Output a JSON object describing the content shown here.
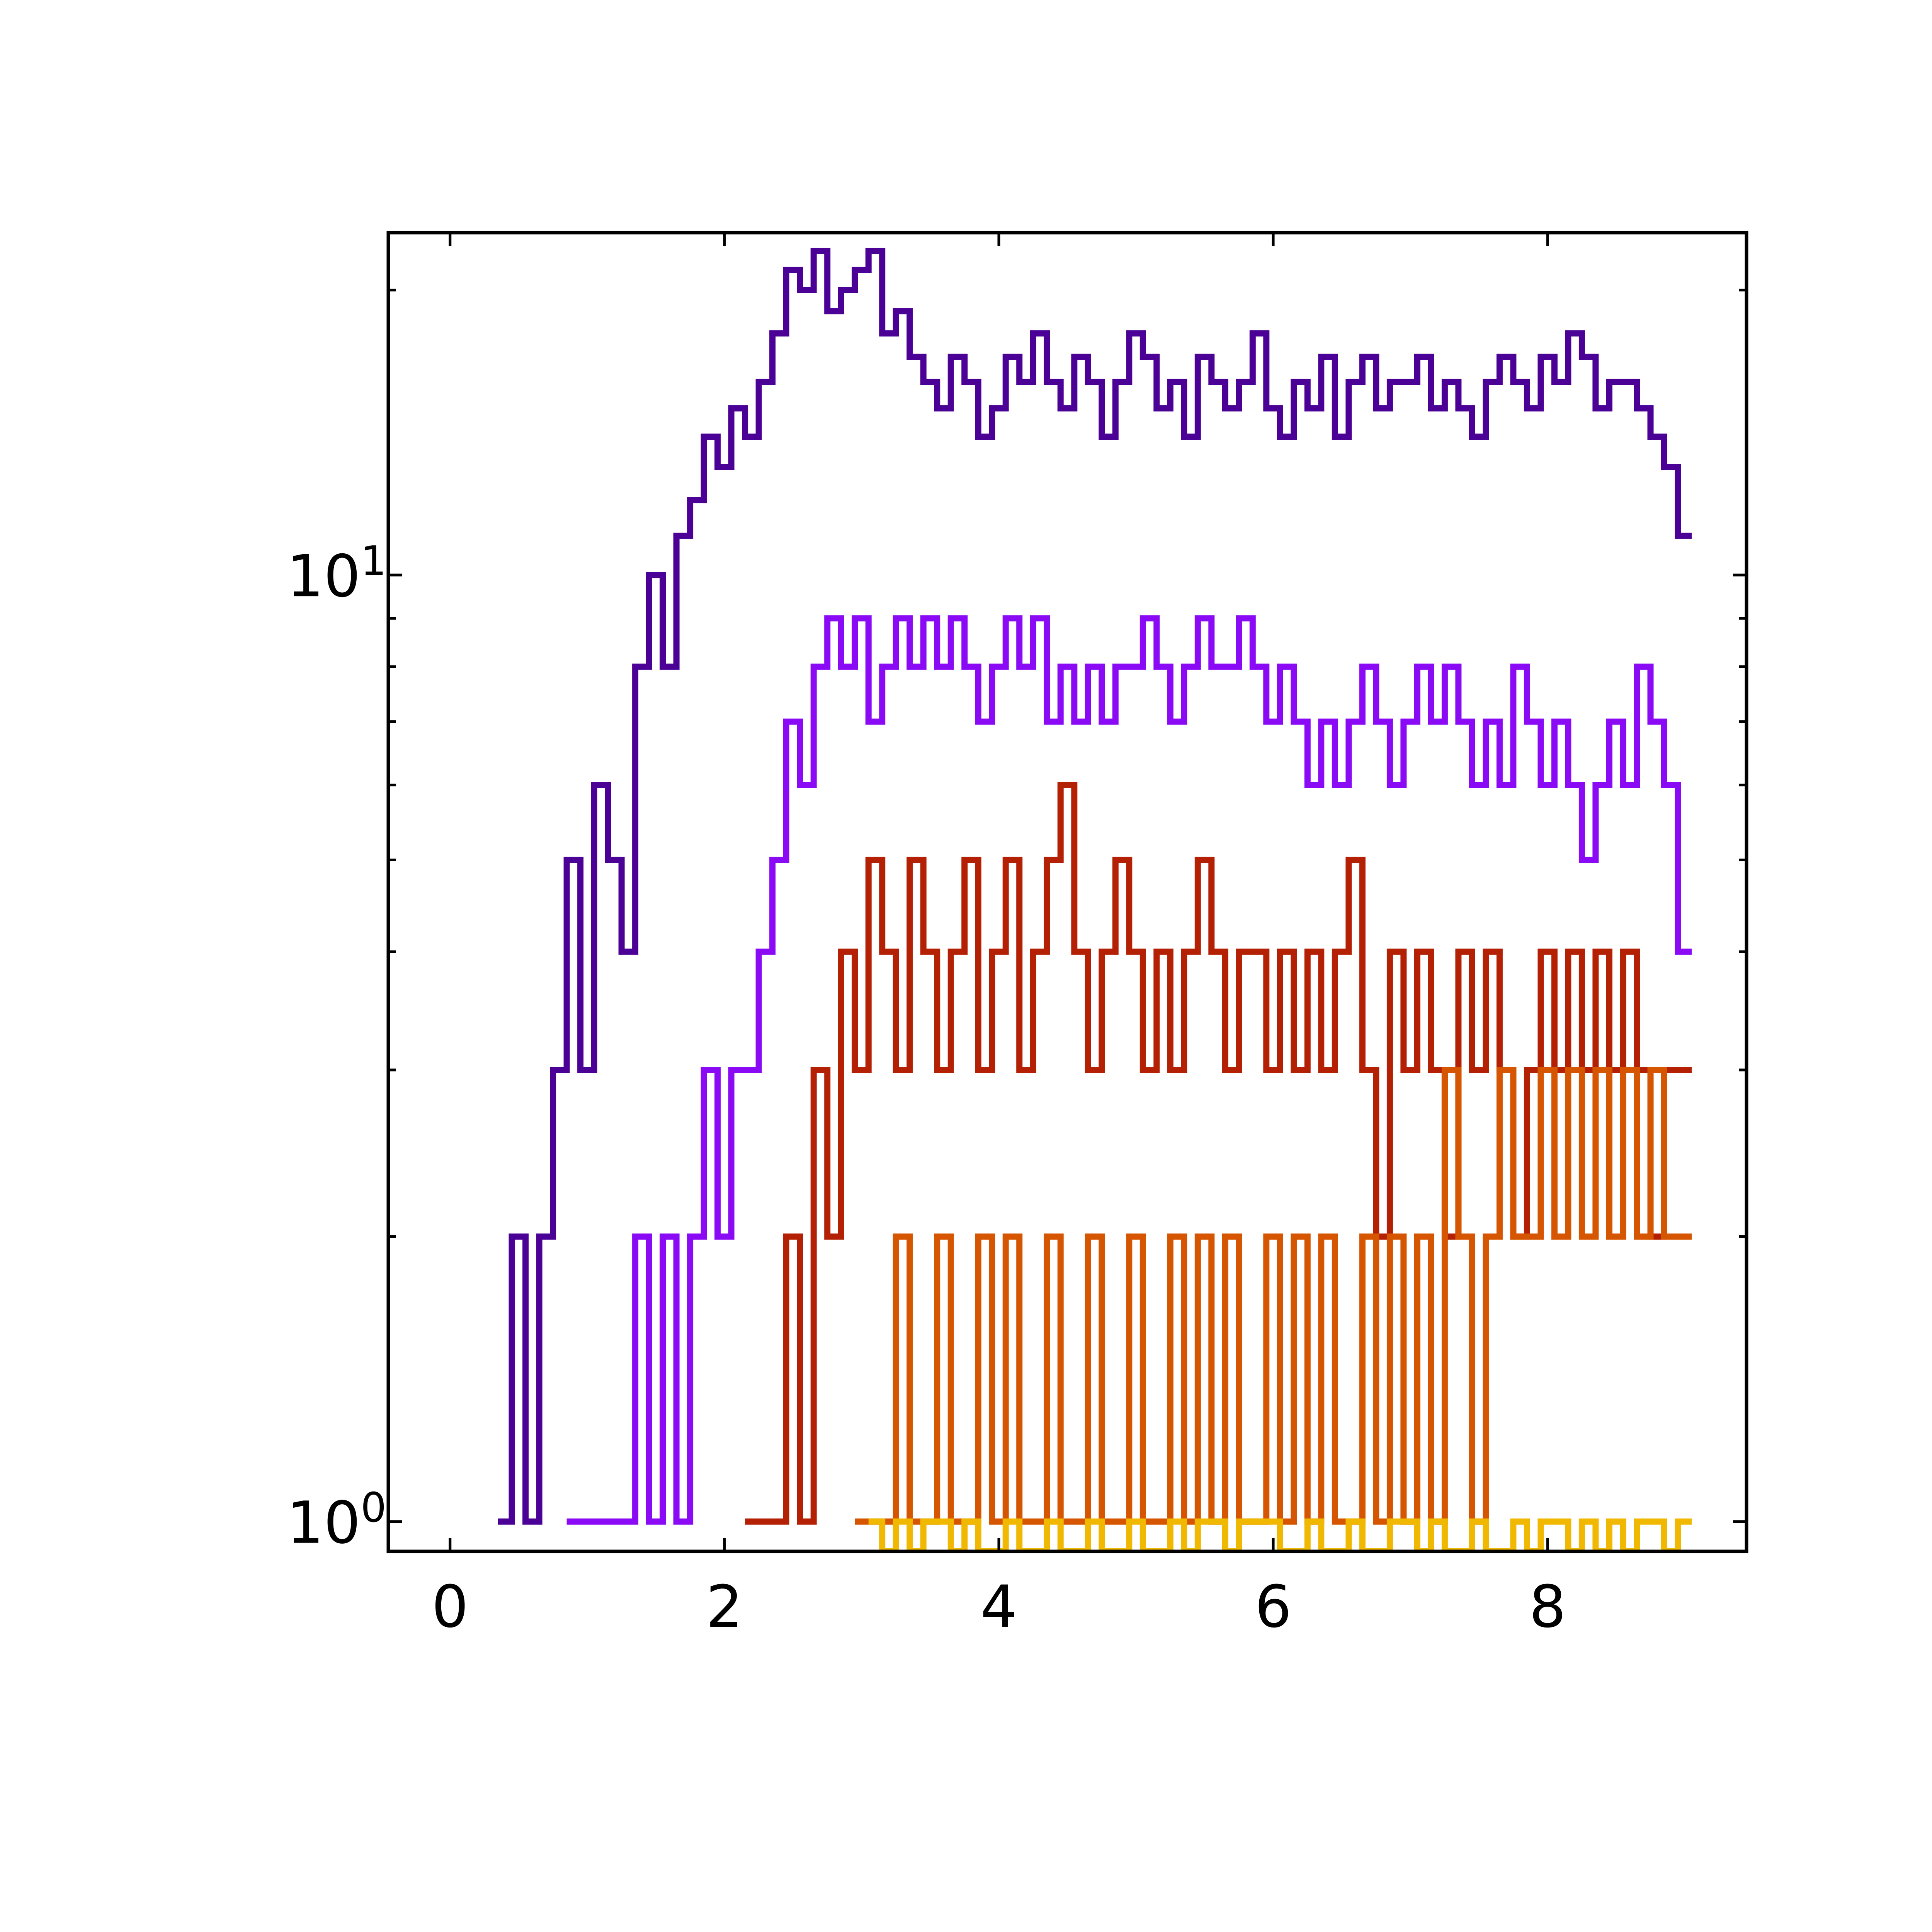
{
  "chart_data": {
    "type": "line",
    "title": "",
    "xlabel": "",
    "ylabel": "",
    "xscale": "linear",
    "yscale": "log",
    "xlim": [
      -0.45,
      9.45
    ],
    "ylim": [
      0.93,
      23
    ],
    "grid": false,
    "legend": "none",
    "x_ticks": [
      {
        "value": 0,
        "label": "0"
      },
      {
        "value": 2,
        "label": "2"
      },
      {
        "value": 4,
        "label": "4"
      },
      {
        "value": 6,
        "label": "6"
      },
      {
        "value": 8,
        "label": "8"
      }
    ],
    "y_ticks": [
      {
        "value": 1,
        "base": "10",
        "exponent": "0"
      },
      {
        "value": 10,
        "base": "10",
        "exponent": "1"
      }
    ],
    "y_minor_ticks": [
      2,
      3,
      4,
      5,
      6,
      7,
      8,
      9,
      20
    ],
    "series": [
      {
        "color": "#4b0096",
        "x": [
          0.4,
          0.5,
          0.6,
          0.7,
          0.8,
          0.9,
          1.0,
          1.1,
          1.2,
          1.3,
          1.4,
          1.5,
          1.6,
          1.7,
          1.8,
          1.9,
          2.0,
          2.1,
          2.2,
          2.3,
          2.4,
          2.5,
          2.6,
          2.7,
          2.8,
          2.9,
          3.0,
          3.1,
          3.2,
          3.3,
          3.4,
          3.5,
          3.6,
          3.7,
          3.8,
          3.9,
          4.0,
          4.1,
          4.2,
          4.3,
          4.4,
          4.5,
          4.6,
          4.7,
          4.8,
          4.9,
          5.0,
          5.1,
          5.2,
          5.3,
          5.4,
          5.5,
          5.6,
          5.7,
          5.8,
          5.9,
          6.0,
          6.1,
          6.2,
          6.3,
          6.4,
          6.5,
          6.6,
          6.7,
          6.8,
          6.9,
          7.0,
          7.1,
          7.2,
          7.3,
          7.4,
          7.5,
          7.6,
          7.7,
          7.8,
          7.9,
          8.0,
          8.1,
          8.2,
          8.3,
          8.4,
          8.5,
          8.6,
          8.7,
          8.8,
          8.9,
          9.0
        ],
        "values": [
          1,
          2,
          1,
          2,
          3,
          5,
          3,
          6,
          5,
          4,
          8,
          10,
          8,
          11,
          12,
          14,
          13,
          15,
          14,
          16,
          18,
          21,
          20,
          22,
          19,
          20,
          21,
          22,
          18,
          19,
          17,
          16,
          15,
          17,
          16,
          14,
          15,
          17,
          16,
          18,
          16,
          15,
          17,
          16,
          14,
          16,
          18,
          17,
          15,
          16,
          14,
          17,
          16,
          15,
          16,
          18,
          15,
          14,
          16,
          15,
          17,
          14,
          16,
          17,
          15,
          16,
          16,
          17,
          15,
          16,
          15,
          14,
          16,
          17,
          16,
          15,
          17,
          16,
          18,
          17,
          15,
          16,
          16,
          15,
          14,
          13,
          11
        ]
      },
      {
        "color": "#8a0af5",
        "x": [
          0.9,
          1.0,
          1.1,
          1.2,
          1.3,
          1.4,
          1.5,
          1.6,
          1.7,
          1.8,
          1.9,
          2.0,
          2.1,
          2.2,
          2.3,
          2.4,
          2.5,
          2.6,
          2.7,
          2.8,
          2.9,
          3.0,
          3.1,
          3.2,
          3.3,
          3.4,
          3.5,
          3.6,
          3.7,
          3.8,
          3.9,
          4.0,
          4.1,
          4.2,
          4.3,
          4.4,
          4.5,
          4.6,
          4.7,
          4.8,
          4.9,
          5.0,
          5.1,
          5.2,
          5.3,
          5.4,
          5.5,
          5.6,
          5.7,
          5.8,
          5.9,
          6.0,
          6.1,
          6.2,
          6.3,
          6.4,
          6.5,
          6.6,
          6.7,
          6.8,
          6.9,
          7.0,
          7.1,
          7.2,
          7.3,
          7.4,
          7.5,
          7.6,
          7.7,
          7.8,
          7.9,
          8.0,
          8.1,
          8.2,
          8.3,
          8.4,
          8.5,
          8.6,
          8.7,
          8.8,
          8.9,
          9.0
        ],
        "values": [
          1,
          1,
          1,
          1,
          1,
          2,
          1,
          2,
          1,
          2,
          3,
          2,
          3,
          3,
          4,
          5,
          7,
          6,
          8,
          9,
          8,
          9,
          7,
          8,
          9,
          8,
          9,
          8,
          9,
          8,
          7,
          8,
          9,
          8,
          9,
          7,
          8,
          7,
          8,
          7,
          8,
          8,
          9,
          8,
          7,
          8,
          9,
          8,
          8,
          9,
          8,
          7,
          8,
          7,
          6,
          7,
          6,
          7,
          8,
          7,
          6,
          7,
          8,
          7,
          8,
          7,
          6,
          7,
          6,
          8,
          7,
          6,
          7,
          6,
          5,
          6,
          7,
          6,
          8,
          7,
          6,
          4
        ]
      },
      {
        "color": "#b42004",
        "x": [
          2.2,
          2.3,
          2.4,
          2.5,
          2.6,
          2.7,
          2.8,
          2.9,
          3.0,
          3.1,
          3.2,
          3.3,
          3.4,
          3.5,
          3.6,
          3.7,
          3.8,
          3.9,
          4.0,
          4.1,
          4.2,
          4.3,
          4.4,
          4.5,
          4.6,
          4.7,
          4.8,
          4.9,
          5.0,
          5.1,
          5.2,
          5.3,
          5.4,
          5.5,
          5.6,
          5.7,
          5.8,
          5.9,
          6.0,
          6.1,
          6.2,
          6.3,
          6.4,
          6.5,
          6.6,
          6.7,
          6.8,
          6.9,
          7.0,
          7.1,
          7.2,
          7.3,
          7.4,
          7.5,
          7.6,
          7.7,
          7.8,
          7.9,
          8.0,
          8.1,
          8.2,
          8.3,
          8.4,
          8.5,
          8.6,
          8.7,
          8.8,
          8.9,
          9.0
        ],
        "values": [
          1,
          1,
          1,
          2,
          1,
          3,
          2,
          4,
          3,
          5,
          4,
          3,
          5,
          4,
          3,
          4,
          5,
          3,
          4,
          5,
          3,
          4,
          5,
          6,
          4,
          3,
          4,
          5,
          4,
          3,
          4,
          3,
          4,
          5,
          4,
          3,
          4,
          4,
          3,
          4,
          3,
          4,
          3,
          4,
          5,
          3,
          2,
          4,
          3,
          4,
          3,
          2,
          4,
          3,
          4,
          3,
          2,
          3,
          4,
          3,
          4,
          3,
          4,
          3,
          4,
          3,
          2,
          3,
          3
        ]
      },
      {
        "color": "#d65500",
        "x": [
          3.0,
          3.1,
          3.2,
          3.3,
          3.4,
          3.5,
          3.6,
          3.7,
          3.8,
          3.9,
          4.0,
          4.1,
          4.2,
          4.3,
          4.4,
          4.5,
          4.6,
          4.7,
          4.8,
          4.9,
          5.0,
          5.1,
          5.2,
          5.3,
          5.4,
          5.5,
          5.6,
          5.7,
          5.8,
          5.9,
          6.0,
          6.1,
          6.2,
          6.3,
          6.4,
          6.5,
          6.6,
          6.7,
          6.8,
          6.9,
          7.0,
          7.1,
          7.2,
          7.3,
          7.4,
          7.5,
          7.6,
          7.7,
          7.8,
          7.9,
          8.0,
          8.1,
          8.2,
          8.3,
          8.4,
          8.5,
          8.6,
          8.7,
          8.8,
          8.9,
          9.0
        ],
        "values": [
          1,
          1,
          1,
          2,
          1,
          1,
          2,
          1,
          1,
          2,
          1,
          2,
          1,
          1,
          2,
          1,
          1,
          2,
          1,
          1,
          2,
          1,
          1,
          2,
          1,
          2,
          1,
          2,
          1,
          1,
          2,
          1,
          2,
          1,
          2,
          1,
          1,
          2,
          1,
          2,
          1,
          2,
          1,
          3,
          2,
          1,
          2,
          3,
          2,
          2,
          3,
          2,
          3,
          2,
          3,
          2,
          3,
          2,
          3,
          2,
          2
        ]
      },
      {
        "color": "#f0b800",
        "x": [
          3.1,
          3.2,
          3.3,
          3.4,
          3.5,
          3.6,
          3.7,
          3.8,
          3.9,
          4.0,
          4.1,
          4.2,
          4.3,
          4.4,
          4.5,
          4.6,
          4.7,
          4.8,
          4.9,
          5.0,
          5.1,
          5.2,
          5.3,
          5.4,
          5.5,
          5.6,
          5.7,
          5.8,
          5.9,
          6.0,
          6.1,
          6.2,
          6.3,
          6.4,
          6.5,
          6.6,
          6.7,
          6.8,
          6.9,
          7.0,
          7.1,
          7.2,
          7.3,
          7.4,
          7.5,
          7.6,
          7.7,
          7.8,
          7.9,
          8.0,
          8.1,
          8.2,
          8.3,
          8.4,
          8.5,
          8.6,
          8.7,
          8.8,
          8.9,
          9.0
        ],
        "values": [
          1,
          0.93,
          1,
          0.93,
          1,
          1,
          0.93,
          1,
          0.93,
          0.93,
          1,
          0.93,
          0.93,
          1,
          0.93,
          0.93,
          1,
          0.93,
          0.93,
          1,
          0.93,
          0.93,
          1,
          0.93,
          1,
          1,
          0.93,
          1,
          1,
          1,
          0.93,
          0.93,
          1,
          0.93,
          0.93,
          1,
          0.93,
          0.93,
          1,
          1,
          0.93,
          1,
          0.93,
          0.93,
          1,
          0.93,
          0.93,
          1,
          0.93,
          1,
          1,
          0.93,
          1,
          0.93,
          1,
          0.93,
          1,
          1,
          0.93,
          1
        ]
      }
    ]
  }
}
